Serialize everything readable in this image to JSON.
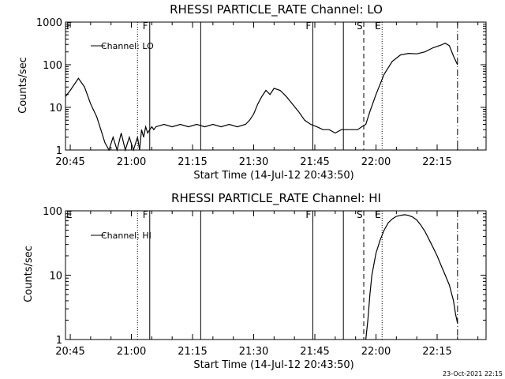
{
  "footer": "23-Oct-2021 22:15",
  "style": {
    "background": "#ffffff",
    "foreground": "#000000"
  },
  "chart_data": [
    {
      "type": "line",
      "title": "RHESSI PARTICLE_RATE Channel: LO",
      "xlabel": "Start Time (14-Jul-12 20:43:50)",
      "ylabel": "Counts/sec",
      "yscale": "log",
      "ylim": [
        1,
        1000
      ],
      "xlim": [
        "20:43:50",
        "22:27:00"
      ],
      "xticks": [
        "20:45",
        "21:00",
        "21:15",
        "21:30",
        "21:45",
        "22:00",
        "22:15"
      ],
      "yticks": [
        "1",
        "10",
        "100",
        "1000"
      ],
      "legend": {
        "label": "Channel: LO",
        "position": "top-left"
      },
      "events": [
        {
          "time": "21:01:30",
          "style": "dotted",
          "label": ""
        },
        {
          "time": "21:04:30",
          "style": "solid",
          "label": "F"
        },
        {
          "time": "21:17:00",
          "style": "solid",
          "label": ""
        },
        {
          "time": "21:44:30",
          "style": "solid",
          "label": "F"
        },
        {
          "time": "21:52:00",
          "style": "solid",
          "label": ""
        },
        {
          "time": "21:57:00",
          "style": "dashed",
          "label": "S"
        },
        {
          "time": "22:01:30",
          "style": "dotted",
          "label": "E"
        },
        {
          "time": "22:20:00",
          "style": "dashdot",
          "label": ""
        }
      ],
      "left_edge_label": "F",
      "series": [
        {
          "x": [
            "20:43:50",
            "20:45:00",
            "20:47:00",
            "20:48:30",
            "20:50:00",
            "20:51:30",
            "20:52:30",
            "20:53:30",
            "20:54:30",
            "20:55:30",
            "20:56:30",
            "20:57:30",
            "20:58:30",
            "20:59:30",
            "21:00:30",
            "21:01:30",
            "21:02:00",
            "21:02:30",
            "21:03:00",
            "21:03:30",
            "21:04:00",
            "21:04:30",
            "21:05:00",
            "21:05:30",
            "21:06:00",
            "21:08:00",
            "21:10:00",
            "21:12:00",
            "21:14:00",
            "21:16:00",
            "21:18:00",
            "21:20:00",
            "21:22:00",
            "21:24:00",
            "21:26:00",
            "21:28:00",
            "21:29:00",
            "21:30:00",
            "21:31:00",
            "21:32:00",
            "21:33:00",
            "21:34:00",
            "21:35:00",
            "21:36:30",
            "21:38:00",
            "21:39:30",
            "21:41:00",
            "21:42:30",
            "21:44:00",
            "21:45:30",
            "21:47:00",
            "21:48:30",
            "21:50:00",
            "21:51:30",
            "21:53:00",
            "21:54:30",
            "21:55:30",
            "21:56:30",
            "21:57:30",
            "21:58:30",
            "22:00:00",
            "22:02:00",
            "22:04:00",
            "22:06:00",
            "22:08:00",
            "22:10:00",
            "22:12:00",
            "22:14:00",
            "22:16:00",
            "22:17:00",
            "22:18:00",
            "22:19:00",
            "22:20:00"
          ],
          "y": [
            18,
            25,
            48,
            30,
            12,
            6,
            3,
            1.5,
            1,
            2,
            1,
            2.5,
            1,
            2,
            1,
            2,
            1,
            3,
            2,
            3.5,
            2.5,
            3,
            3.5,
            3,
            3.5,
            4,
            3.5,
            4,
            3.5,
            4,
            3.5,
            4,
            3.5,
            4,
            3.5,
            4,
            5,
            7,
            12,
            18,
            25,
            20,
            28,
            25,
            18,
            12,
            8,
            5,
            4,
            3.5,
            3,
            3,
            2.5,
            3,
            3,
            3,
            3,
            3.5,
            4,
            8,
            20,
            60,
            120,
            170,
            185,
            180,
            200,
            250,
            290,
            320,
            280,
            160,
            100
          ]
        }
      ]
    },
    {
      "type": "line",
      "title": "RHESSI PARTICLE_RATE Channel: HI",
      "xlabel": "Start Time (14-Jul-12 20:43:50)",
      "ylabel": "Counts/sec",
      "yscale": "log",
      "ylim": [
        1,
        100
      ],
      "xlim": [
        "20:43:50",
        "22:27:00"
      ],
      "xticks": [
        "20:45",
        "21:00",
        "21:15",
        "21:30",
        "21:45",
        "22:00",
        "22:15"
      ],
      "yticks": [
        "1",
        "10",
        "100"
      ],
      "legend": {
        "label": "Channel: HI",
        "position": "top-left"
      },
      "events": [
        {
          "time": "21:01:30",
          "style": "dotted",
          "label": ""
        },
        {
          "time": "21:04:30",
          "style": "solid",
          "label": "F"
        },
        {
          "time": "21:17:00",
          "style": "solid",
          "label": ""
        },
        {
          "time": "21:44:30",
          "style": "solid",
          "label": "F"
        },
        {
          "time": "21:52:00",
          "style": "solid",
          "label": ""
        },
        {
          "time": "21:57:00",
          "style": "dashed",
          "label": "S"
        },
        {
          "time": "22:01:30",
          "style": "dotted",
          "label": "E"
        },
        {
          "time": "22:20:00",
          "style": "dashdot",
          "label": ""
        }
      ],
      "left_edge_label": "E",
      "series": [
        {
          "x": [
            "21:57:30",
            "21:58:00",
            "21:58:30",
            "21:59:00",
            "22:00:00",
            "22:01:00",
            "22:02:00",
            "22:03:00",
            "22:04:00",
            "22:05:00",
            "22:06:00",
            "22:07:00",
            "22:08:00",
            "22:09:00",
            "22:10:00",
            "22:11:00",
            "22:12:00",
            "22:13:00",
            "22:14:00",
            "22:15:00",
            "22:16:00",
            "22:17:00",
            "22:18:00",
            "22:19:00",
            "22:19:30",
            "22:20:00"
          ],
          "y": [
            1,
            2,
            5,
            10,
            22,
            35,
            50,
            65,
            75,
            82,
            85,
            87,
            85,
            80,
            72,
            60,
            48,
            36,
            27,
            20,
            14,
            10,
            7,
            4,
            2.5,
            1.8
          ]
        }
      ]
    }
  ]
}
